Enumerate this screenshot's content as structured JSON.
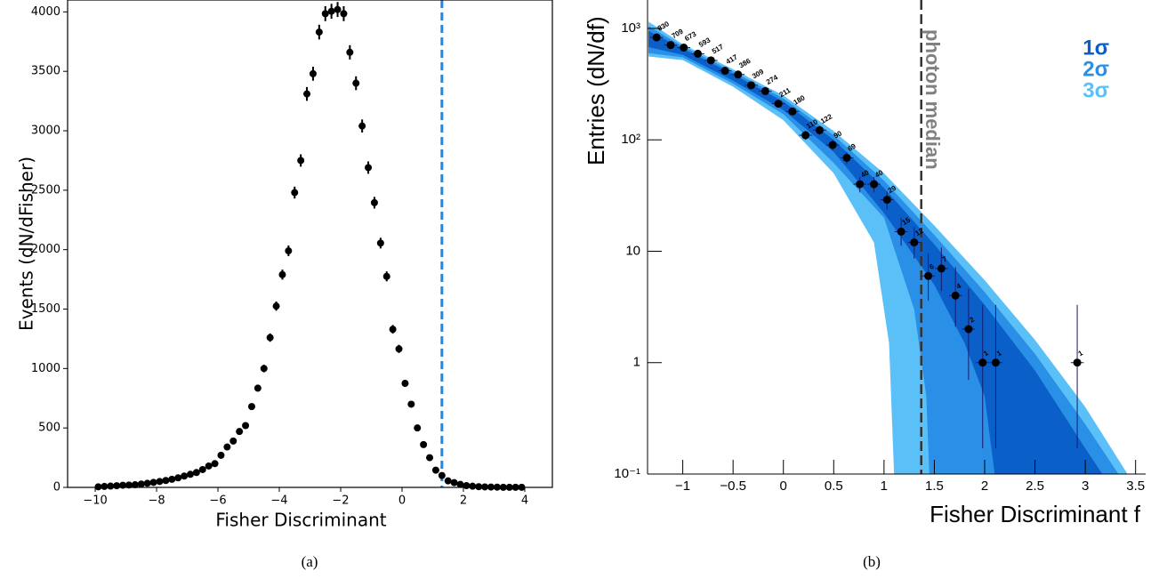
{
  "chart_data": [
    {
      "type": "scatter",
      "caption": "(a)",
      "xlabel": "Fisher Discriminant",
      "ylabel": "Events (dN/dFisher)",
      "color": "#000000",
      "x": [
        -9.9,
        -9.7,
        -9.5,
        -9.3,
        -9.1,
        -8.9,
        -8.7,
        -8.5,
        -8.3,
        -8.1,
        -7.9,
        -7.7,
        -7.5,
        -7.3,
        -7.1,
        -6.9,
        -6.7,
        -6.5,
        -6.3,
        -6.1,
        -5.9,
        -5.7,
        -5.5,
        -5.3,
        -5.1,
        -4.9,
        -4.7,
        -4.5,
        -4.3,
        -4.1,
        -3.9,
        -3.7,
        -3.5,
        -3.3,
        -3.1,
        -2.9,
        -2.7,
        -2.5,
        -2.3,
        -2.1,
        -1.9,
        -1.7,
        -1.5,
        -1.3,
        -1.1,
        -0.9,
        -0.7,
        -0.5,
        -0.3,
        -0.1,
        0.1,
        0.3,
        0.5,
        0.7,
        0.9,
        1.1,
        1.3,
        1.5,
        1.7,
        1.9,
        2.1,
        2.3,
        2.5,
        2.7,
        2.9,
        3.1,
        3.3,
        3.5,
        3.7,
        3.9
      ],
      "values": [
        5,
        8,
        11,
        14,
        18,
        20,
        22,
        28,
        35,
        42,
        50,
        58,
        68,
        80,
        95,
        110,
        125,
        150,
        180,
        200,
        270,
        340,
        390,
        470,
        520,
        680,
        835,
        1000,
        1260,
        1525,
        1790,
        1990,
        2480,
        2750,
        3310,
        3480,
        3830,
        3985,
        4005,
        4020,
        3985,
        3660,
        3400,
        3040,
        2690,
        2395,
        2055,
        1775,
        1330,
        1165,
        875,
        700,
        500,
        360,
        250,
        145,
        100,
        55,
        40,
        25,
        15,
        10,
        6,
        4,
        3,
        2,
        1,
        1,
        1,
        1
      ],
      "errors": [
        2,
        3,
        3,
        4,
        4,
        4,
        5,
        5,
        6,
        6,
        7,
        8,
        8,
        9,
        10,
        10,
        11,
        12,
        13,
        14,
        16,
        18,
        20,
        22,
        23,
        26,
        29,
        32,
        35,
        39,
        42,
        45,
        50,
        52,
        58,
        59,
        62,
        63,
        63,
        63,
        63,
        60,
        58,
        55,
        52,
        49,
        45,
        42,
        36,
        34,
        30,
        26,
        22,
        19,
        16,
        12,
        10,
        7,
        6,
        5,
        4,
        3,
        2,
        2,
        2,
        1,
        1,
        1,
        1,
        1
      ],
      "xlim": [
        -10.9,
        4.9
      ],
      "ylim": [
        0,
        4100
      ],
      "xticks": [
        {
          "value": -10,
          "label": "−10"
        },
        {
          "value": -8,
          "label": "−8"
        },
        {
          "value": -6,
          "label": "−6"
        },
        {
          "value": -4,
          "label": "−4"
        },
        {
          "value": -2,
          "label": "−2"
        },
        0,
        2,
        4
      ],
      "yticks": [
        0,
        500,
        1000,
        1500,
        2000,
        2500,
        3000,
        3500,
        4000
      ],
      "vline": {
        "x": 1.3,
        "color": "#1e88e5"
      }
    },
    {
      "type": "scatter",
      "caption": "(b)",
      "xlabel": "Fisher Discriminant f",
      "ylabel": "Entries (dN/df)",
      "color": "#000000",
      "log_y": true,
      "data_labels": true,
      "legend": "top-right",
      "x": [
        -1.26,
        -1.12,
        -0.99,
        -0.85,
        -0.72,
        -0.58,
        -0.45,
        -0.32,
        -0.18,
        -0.05,
        0.09,
        0.22,
        0.36,
        0.49,
        0.63,
        0.76,
        0.9,
        1.03,
        1.17,
        1.3,
        1.44,
        1.57,
        1.71,
        1.84,
        1.98,
        2.11,
        2.92
      ],
      "values": [
        830,
        709,
        673,
        593,
        517,
        417,
        386,
        309,
        274,
        211,
        180,
        110,
        122,
        90,
        69,
        40,
        40,
        29,
        15,
        12,
        6,
        7,
        4,
        2,
        1,
        1,
        1
      ],
      "err_low": [
        29,
        27,
        26,
        24,
        23,
        20,
        20,
        18,
        17,
        15,
        13,
        10,
        11,
        9.5,
        8.3,
        6.3,
        6.3,
        5.4,
        3.8,
        3.4,
        2.4,
        2.6,
        1.9,
        1.3,
        0.83,
        0.83,
        0.83
      ],
      "err_high": [
        29,
        27,
        26,
        24,
        23,
        20,
        20,
        18,
        17,
        15,
        13,
        10,
        11,
        9.5,
        8.3,
        6.3,
        6.3,
        5.4,
        4.9,
        4.5,
        3.6,
        3.8,
        3.2,
        2.6,
        2.3,
        2.3,
        2.3
      ],
      "x_err": 0.065,
      "xlim": [
        -1.35,
        3.6
      ],
      "ylim": [
        0.1,
        1800
      ],
      "xticks": [
        {
          "value": -1,
          "label": "−1"
        },
        {
          "value": -0.5,
          "label": "−0.5"
        },
        0,
        0.5,
        1,
        1.5,
        2,
        2.5,
        3,
        3.5
      ],
      "yticks": [
        {
          "value": 0.1,
          "label": "10⁻¹"
        },
        1,
        10,
        {
          "value": 100,
          "label": "10²"
        },
        {
          "value": 1000,
          "label": "10³"
        }
      ],
      "bands": [
        {
          "name": "1σ",
          "color": "#0a5fc8",
          "upper": {
            "x": [
              -1.34,
              -1,
              -0.5,
              0,
              0.5,
              1,
              1.5,
              2,
              2.5,
              3,
              3.17
            ],
            "values": [
              950,
              660,
              390,
              220,
              100,
              37,
              11.5,
              3.3,
              0.85,
              0.17,
              0.1
            ]
          },
          "lower": {
            "x": [
              -1.34,
              -1,
              -0.5,
              0,
              0.5,
              1,
              1.5,
              1.8,
              2,
              2.1
            ],
            "values": [
              680,
              580,
              340,
              185,
              78,
              22,
              5,
              1.5,
              0.5,
              0.1
            ]
          }
        },
        {
          "name": "2σ",
          "color": "#2a8fe6",
          "upper": {
            "x": [
              -1.34,
              -1,
              -0.5,
              0,
              0.5,
              1,
              1.5,
              2,
              2.5,
              3,
              3.33
            ],
            "values": [
              1050,
              690,
              410,
              235,
              110,
              43,
              14,
              4.3,
              1.2,
              0.28,
              0.1
            ]
          },
          "lower": {
            "x": [
              -1.34,
              -1,
              -0.5,
              0,
              0.5,
              1,
              1.3,
              1.42,
              1.45
            ],
            "values": [
              600,
              550,
              320,
              170,
              62,
              20,
              3,
              0.5,
              0.1
            ]
          }
        },
        {
          "name": "3σ",
          "color": "#5bc0f8",
          "upper": {
            "x": [
              -1.34,
              -1,
              -0.5,
              0,
              0.5,
              1,
              1.5,
              2,
              2.5,
              3,
              3.42
            ],
            "values": [
              1150,
              720,
              430,
              250,
              120,
              50,
              17,
              5.5,
              1.6,
              0.4,
              0.1
            ]
          },
          "lower": {
            "x": [
              -1.34,
              -1,
              -0.5,
              0,
              0.5,
              0.9,
              1.05,
              1.1
            ],
            "values": [
              560,
              520,
              300,
              150,
              50,
              12,
              1.5,
              0.1
            ]
          }
        }
      ],
      "vline": {
        "x": 1.37,
        "color": "#333333",
        "label": "photon median"
      }
    }
  ]
}
